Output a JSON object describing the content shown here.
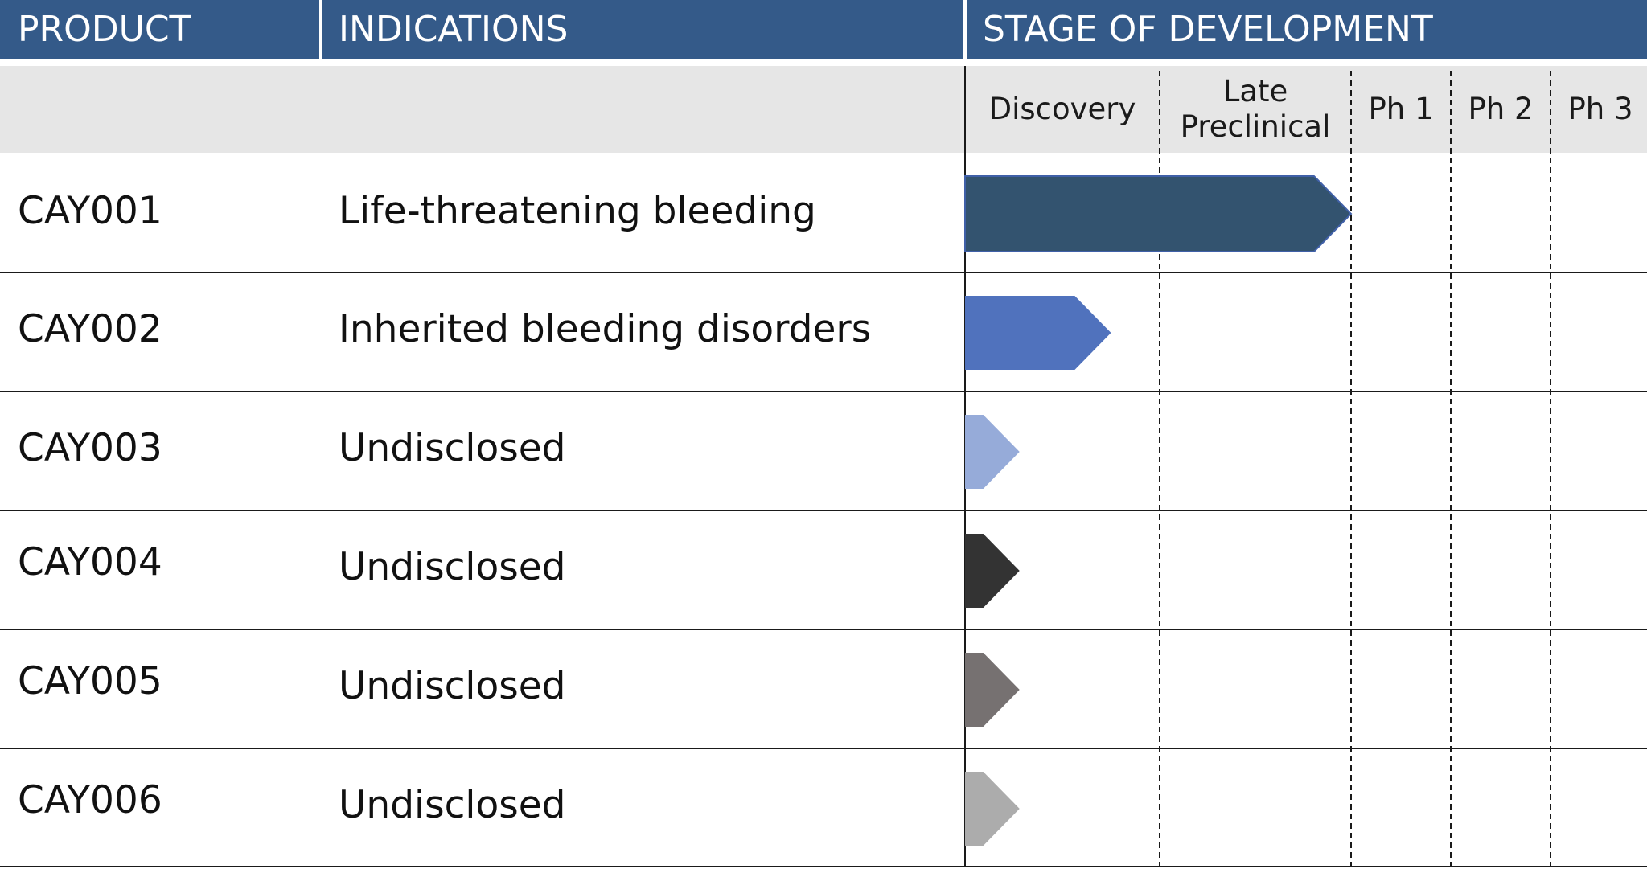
{
  "chart_data": {
    "type": "table",
    "headers": {
      "product": "PRODUCT",
      "indications": "INDICATIONS",
      "stage": "STAGE OF DEVELOPMENT"
    },
    "stages": [
      "Discovery",
      "Late\nPreclinical",
      "Ph 1",
      "Ph 2",
      "Ph 3"
    ],
    "rows": [
      {
        "product": "CAY001",
        "indication": "Life-threatening bleeding",
        "progress_stages": 2.0,
        "color": "#33536f"
      },
      {
        "product": "CAY002",
        "indication": "Inherited bleeding disorders",
        "progress_stages": 0.75,
        "color": "#5072bd"
      },
      {
        "product": "CAY003",
        "indication": "Undisclosed",
        "progress_stages": 0.28,
        "color": "#96abd9"
      },
      {
        "product": "CAY004",
        "indication": "Undisclosed",
        "progress_stages": 0.28,
        "color": "#333333"
      },
      {
        "product": "CAY005",
        "indication": "Undisclosed",
        "progress_stages": 0.28,
        "color": "#767171"
      },
      {
        "product": "CAY006",
        "indication": "Undisclosed",
        "progress_stages": 0.28,
        "color": "#acacac"
      }
    ]
  },
  "colors": {
    "header_bg": "#345a89",
    "subheader_bg": "#e6e6e6"
  }
}
